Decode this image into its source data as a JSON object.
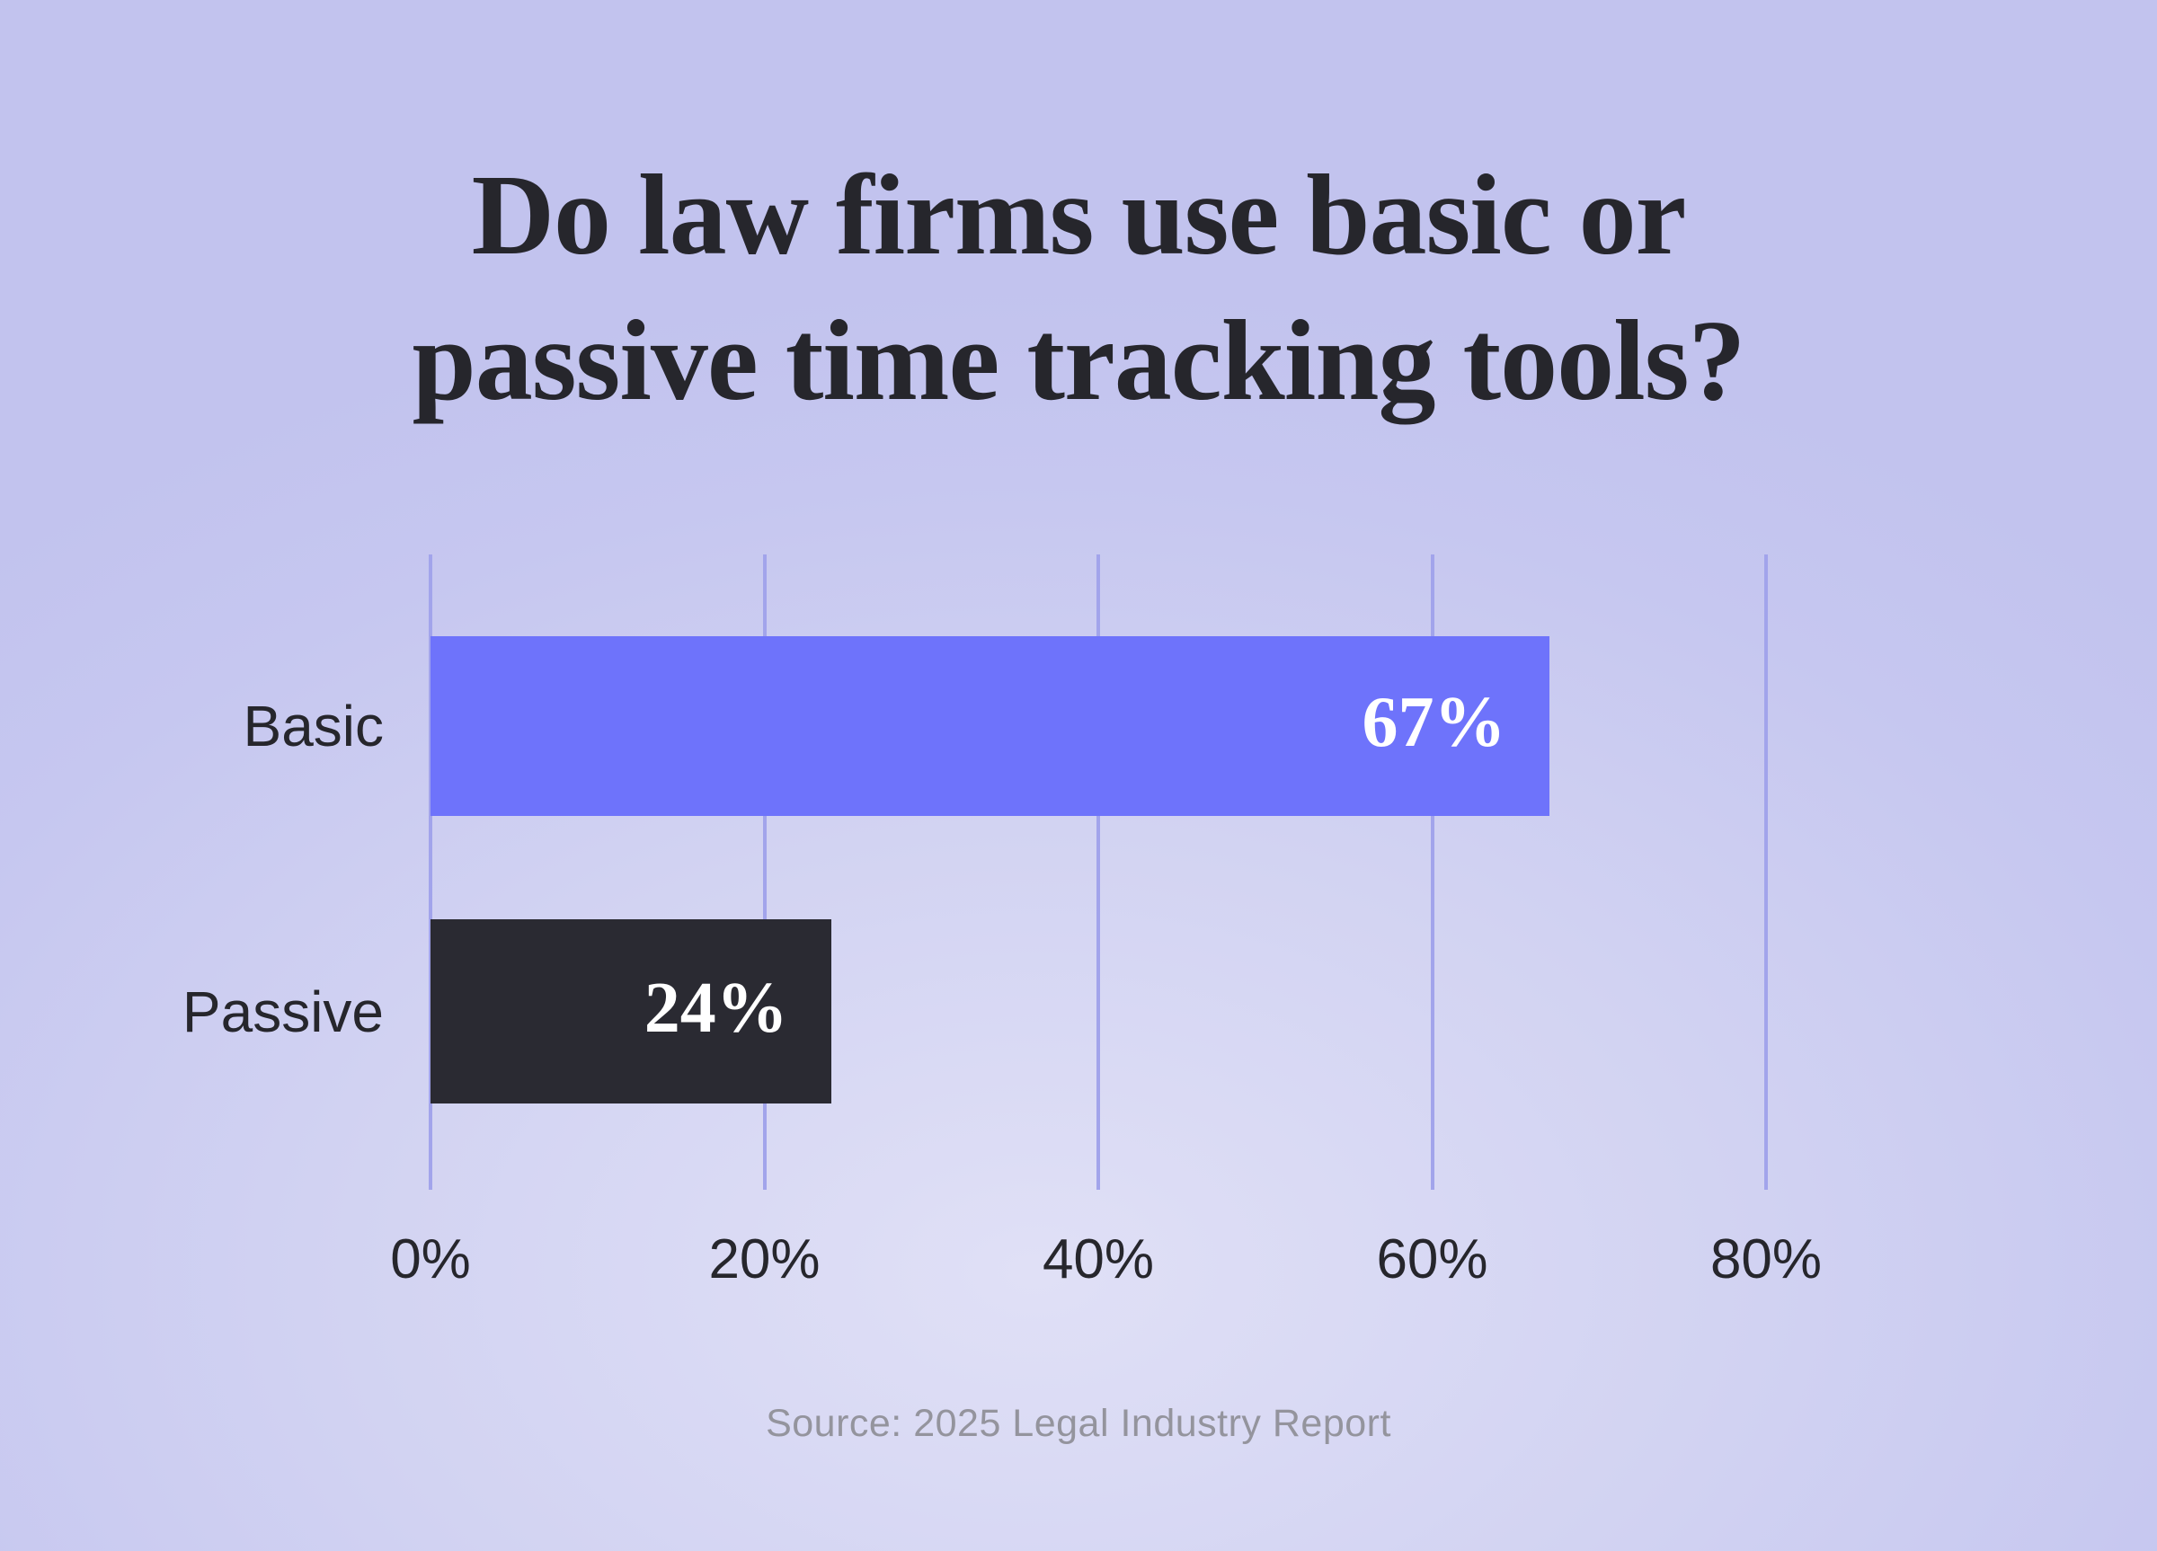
{
  "title": {
    "line1": "Do law firms use basic or",
    "line2": "passive time tracking tools?"
  },
  "source": "Source: 2025 Legal Industry Report",
  "colors": {
    "background_light": "#dfdff5",
    "background_edge": "#c4c5ee",
    "gridline": "#a2a4eb",
    "text_dark": "#26262c",
    "value_label_text": "#ffffff",
    "source_text": "#94949d"
  },
  "chart_data": {
    "type": "bar",
    "orientation": "horizontal",
    "title": "Do law firms use basic or passive time tracking tools?",
    "categories": [
      "Basic",
      "Passive"
    ],
    "values": [
      67,
      24
    ],
    "value_labels": [
      "67%",
      "24%"
    ],
    "bar_colors": [
      "#6e73fb",
      "#2a2a32"
    ],
    "xlabel": "",
    "ylabel": "",
    "xlim": [
      0,
      80
    ],
    "x_tick_values": [
      0,
      20,
      40,
      60,
      80
    ],
    "x_tick_labels": [
      "0%",
      "20%",
      "40%",
      "60%",
      "80%"
    ],
    "grid": true,
    "legend": false,
    "annotation": "Source: 2025 Legal Industry Report"
  }
}
